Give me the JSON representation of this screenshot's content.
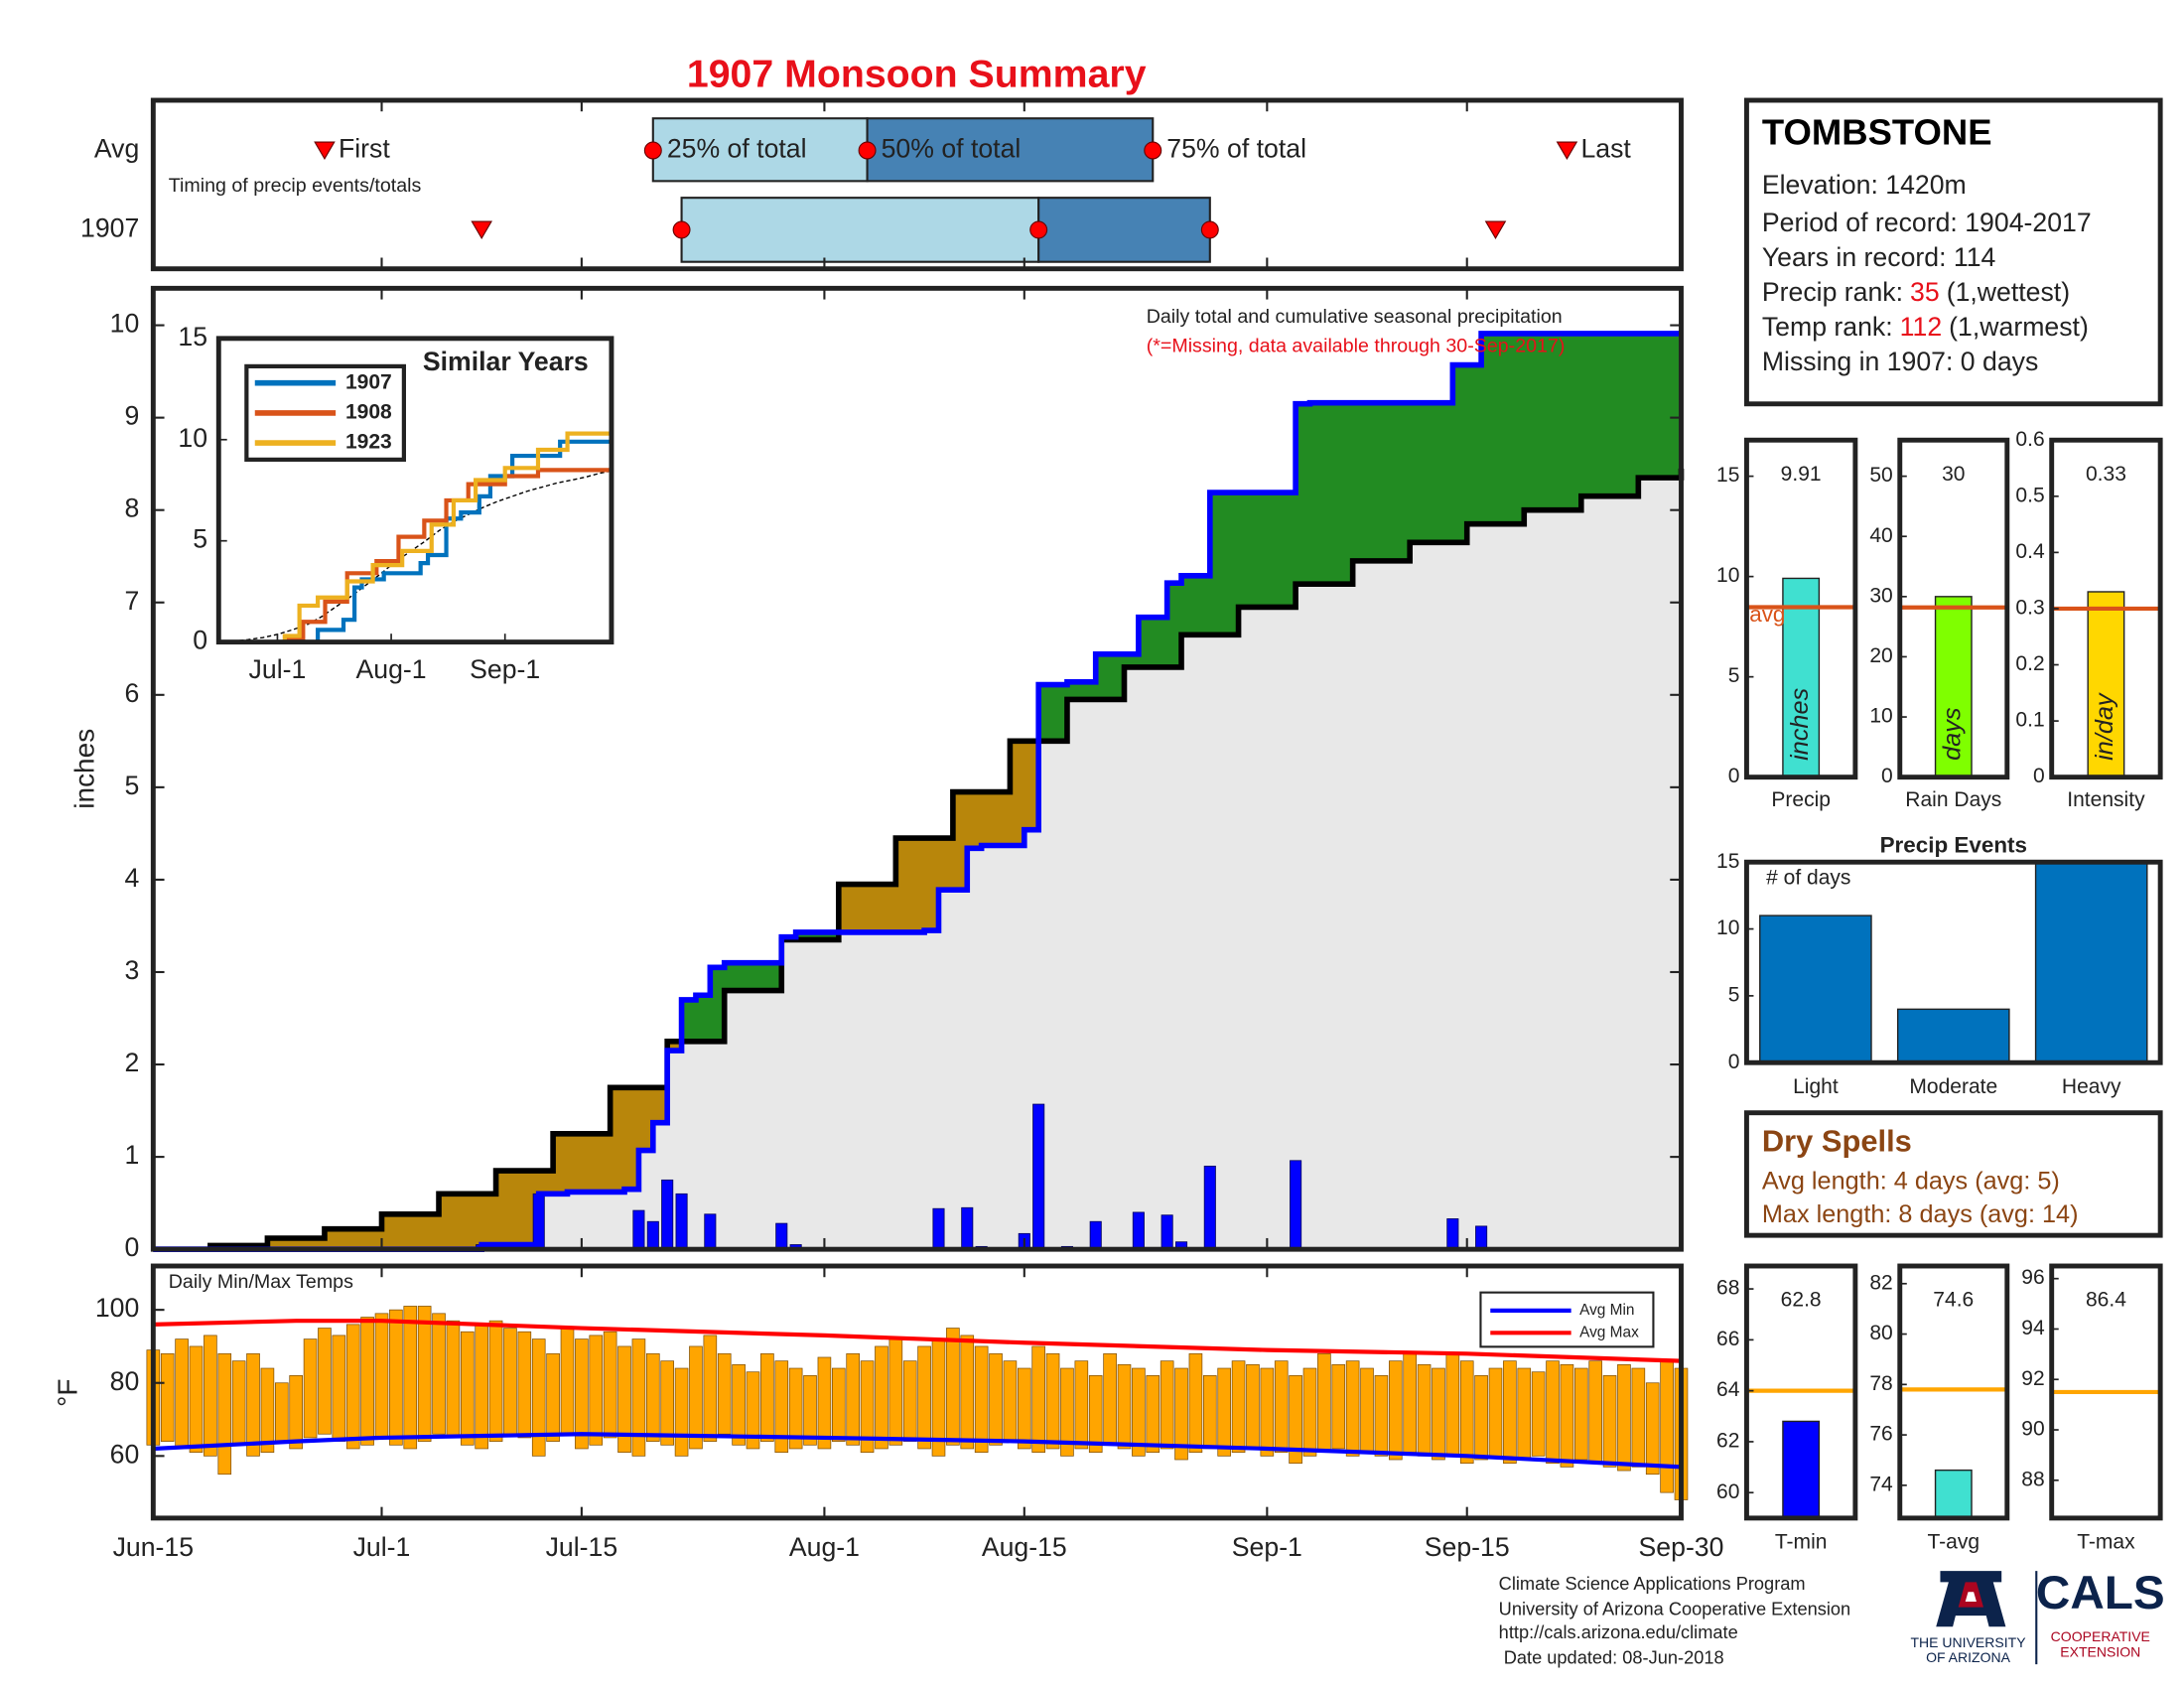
{
  "title": "1907 Monsoon Summary",
  "chart_data": [
    {
      "type": "timeline",
      "subtitle": "Timing of precip events/totals",
      "labels": [
        "First",
        "25% of total",
        "50% of total",
        "75% of total",
        "Last"
      ],
      "colors": [
        "#add8e6",
        "#4682b4"
      ],
      "marker_color": "#ff0000",
      "series": [
        {
          "name": "Avg",
          "values": [
            "Jun-27",
            "Jul-20",
            "Aug-4",
            "Aug-24",
            "Sep-22"
          ]
        },
        {
          "name": "1907",
          "values": [
            "Jul-8",
            "Jul-22",
            "Aug-16",
            "Aug-28",
            "Sep-17"
          ]
        }
      ]
    },
    {
      "type": "cumulative",
      "annotation": "Daily total and cumulative seasonal precipitation",
      "note": "(*=Missing, data available through 30-Sep-2017)",
      "ylabel": "inches",
      "ylim": [
        0,
        10.4
      ],
      "yticks": [
        0,
        1,
        2,
        3,
        4,
        5,
        6,
        7,
        8,
        9,
        10
      ],
      "colors": {
        "above": "#228b22",
        "below": "#b8860b",
        "base": "#e8e8e8"
      },
      "daily": {
        "color": "#0000ff",
        "x": [
          "Jul-8",
          "Jul-12",
          "Jul-19",
          "Jul-20",
          "Jul-21",
          "Jul-22",
          "Jul-24",
          "Jul-29",
          "Jul-30",
          "Aug-9",
          "Aug-11",
          "Aug-12",
          "Aug-15",
          "Aug-16",
          "Aug-18",
          "Aug-20",
          "Aug-23",
          "Aug-25",
          "Aug-26",
          "Aug-28",
          "Sep-3",
          "Sep-14",
          "Sep-16"
        ],
        "values": [
          0.05,
          0.6,
          0.42,
          0.3,
          0.75,
          0.6,
          0.38,
          0.28,
          0.05,
          0.44,
          0.45,
          0.03,
          0.17,
          1.57,
          0.03,
          0.3,
          0.4,
          0.37,
          0.08,
          0.9,
          0.96,
          0.33,
          0.25
        ]
      },
      "cumulative": {
        "color": "#0000ff",
        "x": [
          "Jun-15",
          "Jul-8",
          "Jul-12",
          "Jul-14",
          "Jul-18",
          "Jul-19",
          "Jul-20",
          "Jul-21",
          "Jul-22",
          "Jul-23",
          "Jul-24",
          "Jul-25",
          "Jul-29",
          "Jul-30",
          "Aug-8",
          "Aug-9",
          "Aug-11",
          "Aug-12",
          "Aug-15",
          "Aug-16",
          "Aug-18",
          "Aug-20",
          "Aug-23",
          "Aug-25",
          "Aug-26",
          "Aug-28",
          "Sep-3",
          "Sep-4",
          "Sep-14",
          "Sep-16",
          "Sep-30"
        ],
        "values": [
          0,
          0.05,
          0.6,
          0.62,
          0.65,
          1.07,
          1.37,
          2.15,
          2.7,
          2.75,
          3.05,
          3.1,
          3.38,
          3.43,
          3.45,
          3.89,
          4.34,
          4.37,
          4.54,
          6.11,
          6.14,
          6.44,
          6.84,
          7.21,
          7.29,
          8.19,
          9.15,
          9.16,
          9.57,
          9.91,
          9.91
        ]
      },
      "average": {
        "color": "#000000",
        "x": [
          "Jun-15",
          "Jun-19",
          "Jun-23",
          "Jun-27",
          "Jul-1",
          "Jul-5",
          "Jul-9",
          "Jul-13",
          "Jul-17",
          "Jul-21",
          "Jul-25",
          "Jul-29",
          "Aug-2",
          "Aug-6",
          "Aug-10",
          "Aug-14",
          "Aug-18",
          "Aug-22",
          "Aug-26",
          "Aug-30",
          "Sep-3",
          "Sep-7",
          "Sep-11",
          "Sep-15",
          "Sep-19",
          "Sep-23",
          "Sep-27",
          "Sep-30"
        ],
        "values": [
          0,
          0.04,
          0.12,
          0.22,
          0.38,
          0.6,
          0.85,
          1.25,
          1.75,
          2.25,
          2.8,
          3.35,
          3.95,
          4.45,
          4.95,
          5.5,
          5.95,
          6.3,
          6.65,
          6.95,
          7.2,
          7.45,
          7.65,
          7.85,
          8.0,
          8.15,
          8.35,
          8.45
        ]
      }
    },
    {
      "type": "line",
      "title": "Similar Years",
      "ylim": [
        0,
        15
      ],
      "yticks": [
        0,
        5,
        10,
        15
      ],
      "xlim": [
        "Jun-15",
        "Sep-30"
      ],
      "xticks": [
        "Jul-1",
        "Aug-1",
        "Sep-1"
      ],
      "series": [
        {
          "name": "1907",
          "color": "#0072bd",
          "x": [
            "Jun-15",
            "Jul-12",
            "Jul-19",
            "Jul-22",
            "Jul-24",
            "Jul-30",
            "Aug-9",
            "Aug-11",
            "Aug-16",
            "Aug-20",
            "Aug-25",
            "Aug-28",
            "Sep-3",
            "Sep-16",
            "Sep-30"
          ],
          "values": [
            0,
            0.6,
            1.1,
            2.7,
            3.1,
            3.4,
            3.9,
            4.3,
            6.1,
            6.4,
            7.2,
            8.2,
            9.2,
            9.9,
            9.9
          ]
        },
        {
          "name": "1908",
          "color": "#d95319",
          "x": [
            "Jun-15",
            "Jul-4",
            "Jul-8",
            "Jul-14",
            "Jul-20",
            "Jul-28",
            "Aug-3",
            "Aug-10",
            "Aug-16",
            "Aug-22",
            "Sep-1",
            "Sep-10",
            "Sep-30"
          ],
          "values": [
            0,
            0.2,
            1.0,
            2.0,
            3.4,
            4.0,
            5.2,
            6.0,
            7.0,
            7.8,
            8.2,
            8.5,
            8.6
          ]
        },
        {
          "name": "1923",
          "color": "#edb120",
          "x": [
            "Jun-15",
            "Jul-3",
            "Jul-7",
            "Jul-12",
            "Jul-20",
            "Jul-27",
            "Aug-4",
            "Aug-12",
            "Aug-18",
            "Aug-24",
            "Sep-1",
            "Sep-10",
            "Sep-18",
            "Sep-30"
          ],
          "values": [
            0,
            0.3,
            1.8,
            2.2,
            3.0,
            3.8,
            4.5,
            5.8,
            7.0,
            8.0,
            8.6,
            9.5,
            10.3,
            10.5
          ]
        }
      ]
    },
    {
      "type": "range-bar",
      "title": "Daily Min/Max Temps",
      "ylabel": "°F",
      "ylim": [
        43,
        112
      ],
      "yticks": [
        60,
        80,
        100
      ],
      "color": "#ffa500",
      "xlim": [
        "Jun-15",
        "Sep-30"
      ],
      "xticks": [
        "Jun-15",
        "Jul-1",
        "Jul-15",
        "Aug-1",
        "Aug-15",
        "Sep-1",
        "Sep-15",
        "Sep-30"
      ],
      "max": [
        89,
        88,
        92,
        90,
        93,
        88,
        86,
        88,
        84,
        80,
        82,
        92,
        95,
        93,
        96,
        98,
        99,
        100,
        101,
        101,
        99,
        97,
        94,
        96,
        97,
        95,
        94,
        92,
        88,
        95,
        92,
        93,
        94,
        90,
        92,
        88,
        86,
        84,
        90,
        93,
        88,
        85,
        83,
        88,
        86,
        84,
        82,
        87,
        84,
        88,
        86,
        90,
        92,
        86,
        90,
        92,
        95,
        93,
        90,
        88,
        86,
        84,
        90,
        88,
        84,
        86,
        82,
        88,
        85,
        84,
        82,
        86,
        84,
        88,
        82,
        84,
        86,
        85,
        84,
        86,
        82,
        84,
        88,
        85,
        86,
        84,
        82,
        86,
        88,
        85,
        84,
        88,
        86,
        82,
        84,
        86,
        84,
        83,
        86,
        85,
        84,
        86,
        82,
        85,
        84,
        80,
        86,
        84
      ],
      "min": [
        63,
        64,
        62,
        61,
        60,
        55,
        63,
        60,
        61,
        64,
        62,
        65,
        66,
        64,
        62,
        63,
        65,
        63,
        62,
        64,
        66,
        65,
        63,
        62,
        64,
        66,
        65,
        60,
        64,
        66,
        62,
        63,
        65,
        61,
        60,
        64,
        63,
        60,
        62,
        64,
        66,
        63,
        62,
        64,
        61,
        62,
        63,
        62,
        64,
        63,
        61,
        62,
        63,
        64,
        62,
        60,
        63,
        62,
        61,
        63,
        64,
        62,
        61,
        62,
        60,
        62,
        61,
        63,
        62,
        60,
        61,
        62,
        59,
        61,
        62,
        60,
        61,
        62,
        60,
        61,
        58,
        60,
        61,
        62,
        60,
        61,
        60,
        59,
        61,
        60,
        59,
        60,
        58,
        59,
        60,
        58,
        59,
        60,
        58,
        57,
        59,
        58,
        57,
        56,
        57,
        55,
        50,
        48
      ],
      "series": [
        {
          "name": "Avg Min",
          "color": "#0000ff",
          "x": [
            "Jun-15",
            "Jun-25",
            "Jul-1",
            "Jul-15",
            "Aug-1",
            "Aug-15",
            "Sep-1",
            "Sep-15",
            "Sep-30"
          ],
          "values": [
            62,
            64,
            65,
            66,
            65,
            64,
            62,
            60,
            57
          ]
        },
        {
          "name": "Avg Max",
          "color": "#ff0000",
          "x": [
            "Jun-15",
            "Jun-25",
            "Jul-1",
            "Jul-15",
            "Aug-1",
            "Aug-15",
            "Sep-1",
            "Sep-15",
            "Sep-30"
          ],
          "values": [
            96,
            97,
            97,
            95,
            93,
            91,
            89,
            88,
            86
          ]
        }
      ]
    },
    {
      "type": "bar",
      "categories": [
        "Precip"
      ],
      "values": [
        9.91
      ],
      "color": "#40e0d0",
      "ylim": [
        0,
        16.8
      ],
      "yticks": [
        0,
        5,
        10,
        15
      ],
      "bar_label": "inches",
      "avg": 8.47,
      "avg_label": "avg",
      "avg_color": "#d95319"
    },
    {
      "type": "bar",
      "categories": [
        "Rain Days"
      ],
      "values": [
        30
      ],
      "color": "#7fff00",
      "ylim": [
        0,
        56
      ],
      "yticks": [
        0,
        10,
        20,
        30,
        40,
        50
      ],
      "bar_label": "days",
      "avg": 28.2,
      "avg_color": "#d95319"
    },
    {
      "type": "bar",
      "categories": [
        "Intensity"
      ],
      "values": [
        0.33
      ],
      "color": "#ffd700",
      "ylim": [
        0,
        0.6
      ],
      "yticks": [
        0,
        0.1,
        0.2,
        0.3,
        0.4,
        0.5,
        0.6
      ],
      "bar_label": "in/day",
      "avg": 0.3,
      "avg_color": "#d95319"
    },
    {
      "type": "bar",
      "title": "Precip Events",
      "ylabel": "# of days",
      "categories": [
        "Light",
        "Moderate",
        "Heavy"
      ],
      "values": [
        11,
        4,
        15
      ],
      "color": "#0072bd",
      "ylim": [
        0,
        15
      ],
      "yticks": [
        0,
        5,
        10,
        15
      ]
    },
    {
      "type": "bar",
      "categories": [
        "T-min"
      ],
      "values": [
        62.8
      ],
      "color": "#0000ff",
      "ylim": [
        59,
        68.9
      ],
      "yticks": [
        60,
        62,
        64,
        66,
        68
      ],
      "avg": 64,
      "avg_color": "#ffa500"
    },
    {
      "type": "bar",
      "categories": [
        "T-avg"
      ],
      "values": [
        74.6
      ],
      "color": "#40e0d0",
      "ylim": [
        72.7,
        82.7
      ],
      "yticks": [
        74,
        76,
        78,
        80,
        82
      ],
      "avg": 77.8,
      "avg_color": "#ffa500"
    },
    {
      "type": "bar",
      "categories": [
        "T-max"
      ],
      "values": [
        86.4
      ],
      "ylim": [
        86.5,
        96.5
      ],
      "yticks": [
        88,
        90,
        92,
        94,
        96
      ],
      "avg": 91.5,
      "avg_color": "#ffa500"
    }
  ],
  "info": {
    "station": "TOMBSTONE",
    "elevation": "Elevation: 1420m",
    "period": "Period of record: 1904-2017",
    "years": "Years in record: 114",
    "precip_rank": {
      "label": "Precip rank:",
      "value": 35,
      "note": "(1,wettest)"
    },
    "temp_rank": {
      "label": "Temp rank:",
      "value": 112,
      "note": "(1,warmest)"
    },
    "missing": "Missing in 1907: 0 days"
  },
  "dry_spells": {
    "title": "Dry Spells",
    "lines": [
      "Avg length: 4 days (avg: 5)",
      "Max length: 8 days (avg: 14)"
    ]
  },
  "footer": {
    "lines": [
      "Climate Science Applications Program",
      "University of Arizona Cooperative Extension",
      "http://cals.arizona.edu/climate",
      " Date updated: 08-Jun-2018"
    ]
  },
  "logo": {
    "ua": [
      "THE UNIVERSITY",
      "OF ARIZONA"
    ],
    "cals": "CALS",
    "ext": [
      "COOPERATIVE",
      "EXTENSION"
    ]
  }
}
